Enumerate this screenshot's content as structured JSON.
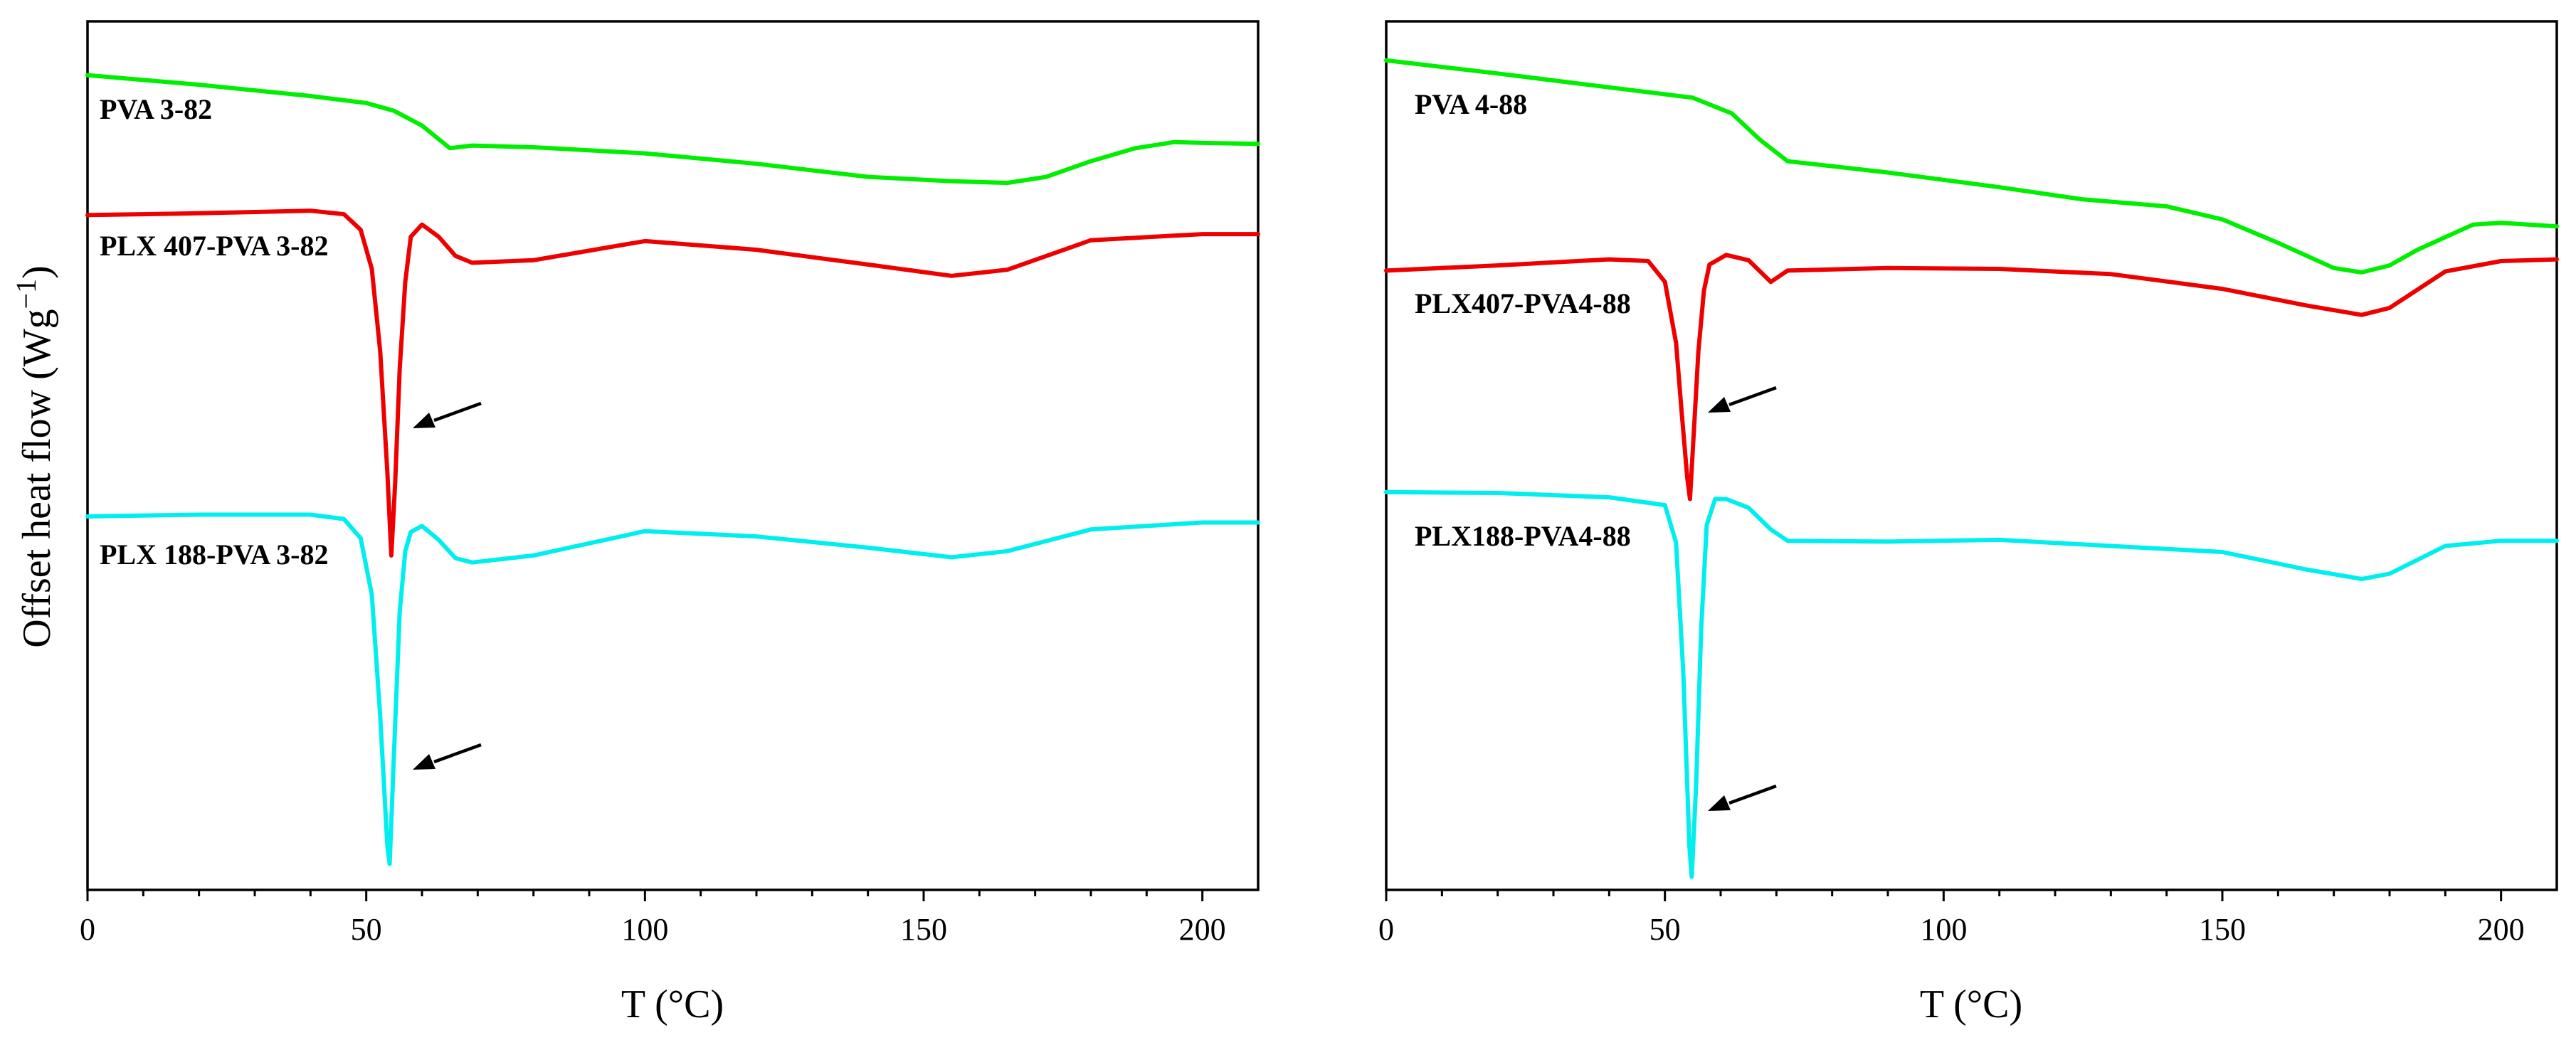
{
  "figure": {
    "ylabel": "Offset heat flow (Wg",
    "ylabel_exp": "−1",
    "ylabel_close": ")"
  },
  "chart_data": [
    {
      "type": "line",
      "xlabel": "T (°C)",
      "xlim": [
        0,
        210
      ],
      "xticks": [
        0,
        50,
        100,
        150,
        200
      ],
      "xtick_labels": [
        "0",
        "50",
        "100",
        "150",
        "200"
      ],
      "ylim": [
        -100,
        0
      ],
      "y_ticks_shown": false,
      "series": [
        {
          "name": "PVA 3-82",
          "color": "#00ee00",
          "x": [
            0,
            20,
            40,
            50,
            55,
            60,
            65,
            69,
            80,
            100,
            120,
            140,
            155,
            165,
            172,
            180,
            188,
            195,
            200,
            210
          ],
          "y": [
            -6.2,
            -7.3,
            -8.6,
            -9.4,
            -10.3,
            -12.0,
            -14.6,
            -14.3,
            -14.5,
            -15.2,
            -16.4,
            -17.9,
            -18.4,
            -18.6,
            -17.9,
            -16.1,
            -14.6,
            -13.9,
            -14.0,
            -14.1
          ]
        },
        {
          "name": "PLX 407-PVA 3-82",
          "color": "#ee0000",
          "x": [
            0,
            20,
            40,
            46,
            49,
            51,
            52.5,
            53.8,
            54.5,
            55.2,
            56,
            57,
            58,
            60,
            63,
            66,
            69,
            80,
            100,
            120,
            140,
            155,
            165,
            180,
            200,
            210
          ],
          "y": [
            -22.3,
            -22.1,
            -21.8,
            -22.2,
            -24.0,
            -28.5,
            -38.0,
            -52.0,
            -61.5,
            -53.0,
            -40.0,
            -30.0,
            -24.8,
            -23.4,
            -24.8,
            -27.0,
            -27.8,
            -27.5,
            -25.3,
            -26.3,
            -28.0,
            -29.3,
            -28.6,
            -25.2,
            -24.5,
            -24.5
          ]
        },
        {
          "name": "PLX 188-PVA 3-82",
          "color": "#00eeee",
          "x": [
            0,
            20,
            40,
            46,
            49,
            51,
            52.5,
            53.8,
            54.2,
            55,
            56,
            57,
            58,
            60,
            63,
            66,
            69,
            80,
            100,
            120,
            140,
            155,
            165,
            180,
            200,
            210
          ],
          "y": [
            -57.0,
            -56.8,
            -56.8,
            -57.3,
            -59.5,
            -66.0,
            -80.0,
            -95.0,
            -97.0,
            -84.0,
            -68.0,
            -61.0,
            -58.8,
            -58.1,
            -59.7,
            -61.8,
            -62.3,
            -61.5,
            -58.7,
            -59.3,
            -60.6,
            -61.7,
            -61.0,
            -58.5,
            -57.7,
            -57.7
          ]
        }
      ],
      "annotations": [
        {
          "text": "PVA 3-82"
        },
        {
          "text": "PLX 407-PVA 3-82"
        },
        {
          "text": "PLX 188-PVA 3-82"
        }
      ]
    },
    {
      "type": "line",
      "xlabel": "T (°C)",
      "xlim": [
        0,
        210
      ],
      "xticks": [
        0,
        50,
        100,
        150,
        200
      ],
      "xtick_labels": [
        "0",
        "50",
        "100",
        "150",
        "200"
      ],
      "ylim": [
        -100,
        0
      ],
      "y_ticks_shown": false,
      "series": [
        {
          "name": "PVA 4-88",
          "color": "#00ee00",
          "x": [
            0,
            20,
            40,
            55,
            62,
            67,
            72,
            90,
            110,
            125,
            140,
            150,
            160,
            170,
            175,
            180,
            185,
            195,
            200,
            210
          ],
          "y": [
            -4.5,
            -6.0,
            -7.6,
            -8.8,
            -10.6,
            -13.6,
            -16.1,
            -17.4,
            -19.1,
            -20.5,
            -21.3,
            -22.8,
            -25.5,
            -28.4,
            -28.9,
            -28.1,
            -26.3,
            -23.4,
            -23.2,
            -23.6
          ]
        },
        {
          "name": "PLX407-PVA4-88",
          "color": "#ee0000",
          "x": [
            0,
            20,
            40,
            47,
            50,
            52,
            53,
            54,
            54.5,
            55.3,
            56,
            57,
            58,
            61,
            65,
            69,
            72,
            90,
            110,
            130,
            150,
            165,
            175,
            180,
            190,
            200,
            210
          ],
          "y": [
            -28.7,
            -28.1,
            -27.4,
            -27.6,
            -30.0,
            -37.0,
            -45.0,
            -52.5,
            -55.0,
            -46.0,
            -38.0,
            -31.0,
            -28.0,
            -26.9,
            -27.5,
            -30.0,
            -28.7,
            -28.4,
            -28.5,
            -29.1,
            -30.8,
            -32.7,
            -33.8,
            -33.0,
            -28.8,
            -27.6,
            -27.4
          ]
        },
        {
          "name": "PLX188-PVA4-88",
          "color": "#00eeee",
          "x": [
            0,
            20,
            40,
            50,
            52,
            53.3,
            54.4,
            54.8,
            55.6,
            56.5,
            57.5,
            59,
            61,
            65,
            69,
            72,
            90,
            110,
            130,
            150,
            165,
            175,
            180,
            190,
            200,
            210
          ],
          "y": [
            -54.2,
            -54.3,
            -54.8,
            -55.7,
            -60.0,
            -75.0,
            -95.0,
            -98.5,
            -88.0,
            -70.0,
            -58.0,
            -55.0,
            -55.0,
            -56.0,
            -58.5,
            -59.8,
            -59.9,
            -59.7,
            -60.4,
            -61.1,
            -63.1,
            -64.2,
            -63.6,
            -60.4,
            -59.8,
            -59.8
          ]
        }
      ],
      "annotations": [
        {
          "text": "PVA 4-88"
        },
        {
          "text": "PLX407-PVA4-88"
        },
        {
          "text": "PLX188-PVA4-88"
        }
      ]
    }
  ]
}
